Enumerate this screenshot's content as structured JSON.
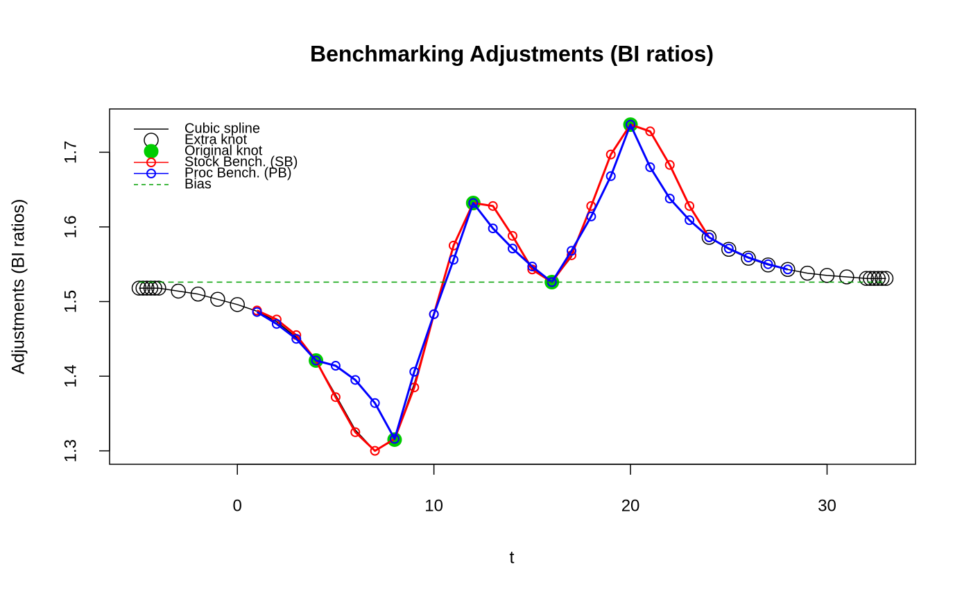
{
  "chart_data": {
    "type": "line",
    "title": "Benchmarking Adjustments (BI ratios)",
    "x_label": "t",
    "y_label": "Adjustments (BI ratios)",
    "xlim": [
      -6.5,
      34.5
    ],
    "ylim": [
      1.282,
      1.758
    ],
    "xticks": [
      0,
      10,
      20,
      30
    ],
    "yticks": [
      1.3,
      1.4,
      1.5,
      1.6,
      1.7
    ],
    "legend": "top-left",
    "series": [
      {
        "name": "Cubic spline",
        "color": "#000000",
        "line": "solid",
        "marker": "none",
        "x": [
          -5,
          -4,
          -3,
          -2,
          -1,
          0,
          1,
          2,
          3,
          4,
          5,
          6,
          7,
          8,
          9,
          10,
          11,
          12,
          13,
          14,
          15,
          16,
          17,
          18,
          19,
          20,
          21,
          22,
          23,
          24,
          25,
          26,
          27,
          28,
          29,
          30,
          31,
          32,
          33
        ],
        "values": [
          1.518,
          1.518,
          1.514,
          1.51,
          1.503,
          1.496,
          1.487,
          1.473,
          1.452,
          1.421,
          1.375,
          1.328,
          1.3,
          1.315,
          1.39,
          1.483,
          1.575,
          1.632,
          1.628,
          1.588,
          1.545,
          1.526,
          1.56,
          1.628,
          1.697,
          1.737,
          1.727,
          1.683,
          1.628,
          1.586,
          1.57,
          1.558,
          1.549,
          1.543,
          1.538,
          1.535,
          1.533,
          1.531,
          1.531
        ]
      },
      {
        "name": "Extra knot",
        "color": "#000000",
        "line": "none",
        "marker": "large-open",
        "x": [
          -5,
          -4.8,
          -4.6,
          -4.4,
          -4.2,
          -4,
          -3,
          -2,
          -1,
          0,
          24,
          25,
          26,
          27,
          28,
          29,
          30,
          31,
          32,
          32.2,
          32.4,
          32.6,
          32.8,
          33
        ],
        "values": [
          1.518,
          1.518,
          1.518,
          1.518,
          1.518,
          1.518,
          1.514,
          1.51,
          1.503,
          1.496,
          1.586,
          1.57,
          1.558,
          1.549,
          1.543,
          1.538,
          1.535,
          1.533,
          1.531,
          1.531,
          1.531,
          1.531,
          1.531,
          1.531
        ]
      },
      {
        "name": "Original knot",
        "color": "#00cc00",
        "line": "none",
        "marker": "large-filled",
        "x": [
          4,
          8,
          12,
          16,
          20
        ],
        "values": [
          1.421,
          1.315,
          1.632,
          1.526,
          1.737
        ]
      },
      {
        "name": "Stock Bench. (SB)",
        "color": "#ff0000",
        "line": "solid",
        "marker": "small-open",
        "x": [
          1,
          2,
          3,
          4,
          5,
          6,
          7,
          8,
          9,
          10,
          11,
          12,
          13,
          14,
          15,
          16,
          17,
          18,
          19,
          20,
          21,
          22,
          23,
          24
        ],
        "values": [
          1.488,
          1.476,
          1.455,
          1.421,
          1.372,
          1.325,
          1.3,
          1.316,
          1.385,
          1.483,
          1.575,
          1.632,
          1.628,
          1.588,
          1.543,
          1.526,
          1.562,
          1.628,
          1.697,
          1.737,
          1.728,
          1.683,
          1.628,
          1.586
        ]
      },
      {
        "name": "Proc Bench. (PB)",
        "color": "#0000ff",
        "line": "solid",
        "marker": "small-open",
        "x": [
          1,
          2,
          3,
          4,
          5,
          6,
          7,
          8,
          9,
          10,
          11,
          12,
          13,
          14,
          15,
          16,
          17,
          18,
          19,
          20,
          21,
          22,
          23,
          24,
          25,
          26,
          27,
          28
        ],
        "values": [
          1.486,
          1.47,
          1.45,
          1.421,
          1.414,
          1.395,
          1.364,
          1.316,
          1.406,
          1.483,
          1.556,
          1.632,
          1.598,
          1.571,
          1.547,
          1.526,
          1.568,
          1.614,
          1.668,
          1.737,
          1.68,
          1.638,
          1.609,
          1.586,
          1.571,
          1.559,
          1.55,
          1.543
        ]
      },
      {
        "name": "Bias",
        "color": "#00a000",
        "line": "dashed",
        "marker": "none",
        "x": [
          -5,
          33
        ],
        "values": [
          1.526,
          1.526
        ]
      }
    ]
  }
}
